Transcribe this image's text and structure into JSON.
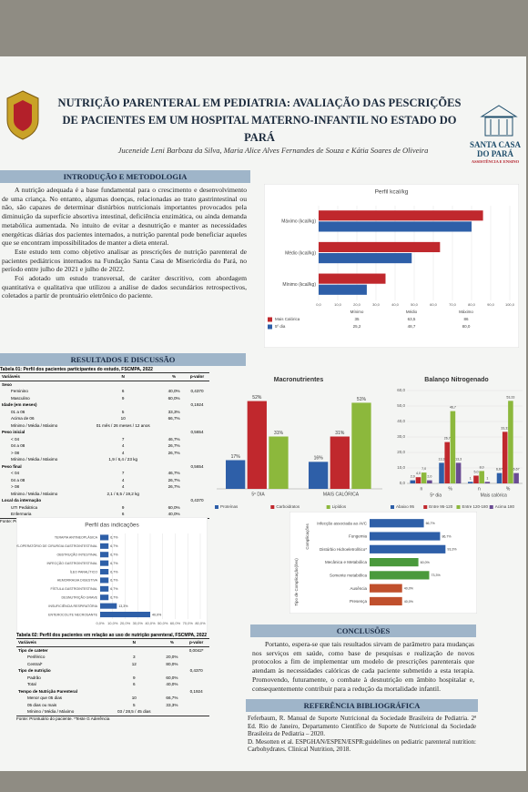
{
  "header": {
    "title": "NUTRIÇÃO PARENTERAL EM PEDIATRIA: AVALIAÇÃO DAS PESCRIÇÕES DE PACIENTES EM UM HOSPITAL MATERNO-INFANTIL NO ESTADO DO PARÁ",
    "authors": "Juceneide Leni Barboza da Silva, Maria Alice Alves Fernandes de Souza e Kátia Soares de Oliveira",
    "logo_name": "SANTA CASA DO PARÁ",
    "logo_tagline": "ASSISTÊNCIA E ENSINO"
  },
  "intro": {
    "heading": "INTRODUÇÃO E METODOLOGIA",
    "paragraphs": [
      "A nutrição adequada é a base fundamental para o crescimento e desenvolvimento de uma criança. No entanto, algumas doenças, relacionadas ao trato gastrintestinal ou não, são capazes de determinar distúrbios nutricionais importantes provocados pela diminuição da superfície absortiva intestinal, deficiência enzimática, ou ainda demanda metabólica aumentada. No intuito de evitar a desnutrição e manter as necessidades energéticas diárias dos pacientes internados, a nutrição parental pode beneficiar aqueles que se encontram impossibilitados de manter a dieta enteral.",
      "Este estudo tem como objetivo analisar as prescrições de nutrição parenteral de pacientes pediátricos internados na Fundação Santa Casa de Misericórdia do Pará, no período entre julho de 2021 e julho de 2022.",
      "Foi adotado um estudo transversal, de caráter descritivo, com abordagem quantitativa e qualitativa que utilizou a análise de dados secundários retrospectivos, coletados a partir de prontuário eletrônico do paciente."
    ]
  },
  "results": {
    "heading": "RESULTADOS E DISCUSSÃO"
  },
  "table1": {
    "caption": "Tabela 01: Perfil dos pacientes participantes do estudo, FSCMPA, 2022",
    "columns": [
      "Variáveis",
      "N",
      "%",
      "p-valor"
    ],
    "rows": [
      [
        "Sexo",
        "",
        "",
        ""
      ],
      [
        "Feminino",
        "6",
        "40,0%",
        "0,4370"
      ],
      [
        "Masculino",
        "9",
        "60,0%",
        ""
      ],
      [
        "Idade (em meses)",
        "",
        "",
        "0,1924"
      ],
      [
        "01 a 06",
        "5",
        "33,3%",
        ""
      ],
      [
        "Acima de 06",
        "10",
        "66,7%",
        ""
      ],
      [
        "Mínimo / Média / Máximo",
        "01 mês / 26 meses / 12 anos",
        "",
        ""
      ],
      [
        "Peso inicial",
        "",
        "",
        "0,5654"
      ],
      [
        "< 04",
        "7",
        "46,7%",
        ""
      ],
      [
        "04 a 08",
        "4",
        "26,7%",
        ""
      ],
      [
        "> 08",
        "4",
        "26,7%",
        ""
      ],
      [
        "Mínimo / Média / Máximo",
        "1,9 / 6,4 / 23 kg",
        "",
        ""
      ],
      [
        "Peso final",
        "",
        "",
        "0,5654"
      ],
      [
        "< 04",
        "7",
        "46,7%",
        ""
      ],
      [
        "04 a 08",
        "4",
        "26,7%",
        ""
      ],
      [
        "> 08",
        "4",
        "26,7%",
        ""
      ],
      [
        "Mínimo / Média / Máximo",
        "2,1 / 6,5 / 19,2 kg",
        "",
        ""
      ],
      [
        "Local da internação",
        "",
        "",
        "0,4370"
      ],
      [
        "UTI Pediátrica",
        "9",
        "60,0%",
        ""
      ],
      [
        "Enfermaria",
        "6",
        "40,0%",
        ""
      ]
    ],
    "source": "Fonte: Prontuário do paciente. *Teste G Aderência"
  },
  "table2": {
    "caption": "Tabela 02: Perfil dos pacientes em relação ao uso de nutrição parenteral, FSCMPA, 2022",
    "columns": [
      "Variáveis",
      "N",
      "%",
      "p-valor"
    ],
    "rows": [
      [
        "Tipo de cateter",
        "",
        "",
        "0,0042*"
      ],
      [
        "Periférico",
        "3",
        "20,0%",
        ""
      ],
      [
        "Central*",
        "12",
        "80,0%",
        ""
      ],
      [
        "Tipo de nutrição",
        "",
        "",
        "0,4370"
      ],
      [
        "Padrão",
        "9",
        "60,0%",
        ""
      ],
      [
        "Total",
        "6",
        "40,0%",
        ""
      ],
      [
        "Tempo de Nutrição Parenteral",
        "",
        "",
        "0,1924"
      ],
      [
        "Menor que 05 dias",
        "10",
        "66,7%",
        ""
      ],
      [
        "05 dias ou mais",
        "5",
        "33,3%",
        ""
      ],
      [
        "Mínimo / Média / Máximo",
        "03 / 28,5 / 45 dias",
        "",
        ""
      ]
    ],
    "source": "Fonte: Prontuário do paciente. *Teste G Aderência"
  },
  "conclusion": {
    "heading": "CONCLUSÕES",
    "text": "Portanto, espera-se que tais resultados sirvam de parâmetro para mudanças nos serviços em saúde, como base de pesquisas e realização de novos protocolos a fim de implementar um modelo de prescrições parenterais que atendam às necessidades calóricas de cada paciente submetido a esta terapia. Promovendo, futuramente, o combate à desnutrição em âmbito hospitalar e, consequentemente contribuir para a redução da mortalidade infantil."
  },
  "references": {
    "heading": "REFERÊNCIA BIBLIOGRÁFICA",
    "items": [
      "Feferbaum, R. Manual de Suporte Nutricional da Sociedade Brasileira de Pediatria. 2ª Ed. Rio de Janeiro, Departamento Científico de Suporte de Nutricional da Sociedade Brasileira de Pediatria – 2020.",
      "D. Mesotten et al. ESPGHAN/ESPEN/ESPR:guidelines on pediatric parenteral nutrition: Carbohydrates. Clinical Nutrition, 2018."
    ]
  },
  "chart_data": [
    {
      "type": "bar",
      "orientation": "horizontal",
      "title": "Perfil kcal/kg",
      "categories": [
        "Mínimo (kcal/kg)",
        "Médio (kcal/kg)",
        "Máximo (kcal/kg)"
      ],
      "table_categories": [
        "Mínimo",
        "Médio",
        "Máximo"
      ],
      "series": [
        {
          "name": "Mais Calórica",
          "color": "#c0282d",
          "values": [
            35,
            63.5,
            86
          ],
          "value_labels": [
            "35",
            "63,5",
            "86"
          ]
        },
        {
          "name": "5º dia",
          "color": "#2e5fa8",
          "values": [
            25.2,
            48.7,
            80
          ],
          "value_labels": [
            "25,2",
            "48,7",
            "80,0"
          ]
        }
      ],
      "xlim": [
        0,
        100
      ],
      "xticks": [
        {
          "value": 0,
          "label": "0,0"
        },
        {
          "value": 10,
          "label": "10,0"
        },
        {
          "value": 20,
          "label": "20,0"
        },
        {
          "value": 30,
          "label": "30,0"
        },
        {
          "value": 40,
          "label": "40,0"
        },
        {
          "value": 50,
          "label": "50,0"
        },
        {
          "value": 60,
          "label": "60,0"
        },
        {
          "value": 70,
          "label": "70,0"
        },
        {
          "value": 80,
          "label": "80,0"
        },
        {
          "value": 90,
          "label": "90,0"
        },
        {
          "value": 100,
          "label": "100,0"
        }
      ],
      "data_table": true
    },
    {
      "type": "bar",
      "orientation": "vertical",
      "title": "Macronutrientes",
      "categories": [
        "5º DIA",
        "MAIS CALÓRICA"
      ],
      "series": [
        {
          "name": "Proteínas",
          "color": "#2e5fa8",
          "values": [
            17,
            16
          ],
          "value_labels": [
            "17%",
            "16%"
          ]
        },
        {
          "name": "Carboidratos",
          "color": "#c0282d",
          "values": [
            52,
            31
          ],
          "value_labels": [
            "52%",
            "31%"
          ]
        },
        {
          "name": "Lipídios",
          "color": "#8cb83c",
          "values": [
            31,
            51
          ],
          "value_labels": [
            "31%",
            "51%"
          ]
        }
      ]
    },
    {
      "type": "bar",
      "orientation": "vertical",
      "title": "Balanço Nitrogenado",
      "categories": [
        "n",
        "%",
        "n",
        "%"
      ],
      "groups": [
        "5º dia",
        "Mais calórica"
      ],
      "series": [
        {
          "name": "Abaixo 95",
          "color": "#2e5fa8",
          "values": [
            2,
            13.3,
            1,
            6.67
          ],
          "value_labels": [
            "2,0",
            "13,3",
            "1",
            "6,67"
          ]
        },
        {
          "name": "Entre 95-120",
          "color": "#c0282d",
          "values": [
            4,
            26.7,
            5,
            33.33
          ],
          "value_labels": [
            "4,0",
            "26,7",
            "5,0",
            "33,33"
          ]
        },
        {
          "name": "Entre 120-180",
          "color": "#8cb83c",
          "values": [
            7,
            46.7,
            8,
            53.33
          ],
          "value_labels": [
            "7,0",
            "46,7",
            "8,0",
            "53,33"
          ]
        },
        {
          "name": "Acima 180",
          "color": "#6a4c93",
          "values": [
            2,
            13.3,
            1,
            6.67
          ],
          "value_labels": [
            "2,0",
            "13,3",
            "1",
            "6,67"
          ]
        }
      ],
      "ylim": [
        0,
        60
      ],
      "yticks": [
        {
          "value": 0,
          "label": "0,0"
        },
        {
          "value": 10,
          "label": "10,0"
        },
        {
          "value": 20,
          "label": "20,0"
        },
        {
          "value": 30,
          "label": "30,0"
        },
        {
          "value": 40,
          "label": "40,0"
        },
        {
          "value": 50,
          "label": "50,0"
        },
        {
          "value": 60,
          "label": "60,0"
        }
      ]
    },
    {
      "type": "bar",
      "orientation": "horizontal",
      "title": "Perfil das indicações",
      "categories": [
        "ENTEROCOLITE NECROSANTE",
        "INSUFICIÊNCIA RESPIRATÓRIA",
        "DESNUTRIÇÃO GRAVE",
        "FÍSTULA GASTROINTESTINAL",
        "HEMORRAGIA DIGESTIVA",
        "ÍLEO PARALÍTICO",
        "INFECÇÃO GASTROINTESTINAL",
        "OBSTRUÇÃO INTESTINAL",
        "PÓS-OPERATÓRIO DE CIRURGIA GASTROINTESTINAL",
        "TERAPIA ANTINEOPLÁSICA"
      ],
      "series": [
        {
          "name": "Indicações",
          "color": "#2e5fa8",
          "values": [
            40,
            13.3,
            6.7,
            6.7,
            6.7,
            6.7,
            6.7,
            6.7,
            6.7,
            6.7
          ],
          "value_labels": [
            "40,0%",
            "13,3%",
            "6,7%",
            "6,7%",
            "6,7%",
            "6,7%",
            "6,7%",
            "6,7%",
            "6,7%",
            "6,7%"
          ]
        }
      ],
      "xlim": [
        0,
        80
      ],
      "xticks": [
        {
          "value": 0,
          "label": "0,0%"
        },
        {
          "value": 10,
          "label": "10,0%"
        },
        {
          "value": 20,
          "label": "20,0%"
        },
        {
          "value": 30,
          "label": "30,0%"
        },
        {
          "value": 40,
          "label": "40,0%"
        },
        {
          "value": 50,
          "label": "50,0%"
        },
        {
          "value": 60,
          "label": "60,0%"
        },
        {
          "value": 70,
          "label": "70,0%"
        },
        {
          "value": 80,
          "label": "80,0%"
        }
      ]
    },
    {
      "type": "bar",
      "orientation": "horizontal",
      "axis_groups": [
        "Tipo de Complicação(ões)",
        "Complicações"
      ],
      "categories": [
        "Presença",
        "Ausência",
        "Somente metabólica",
        "Mecânica e Metabólica",
        "Distúrbio Hidroeletrolítico*",
        "Fungemia",
        "Infecção associada ao AVC"
      ],
      "series": [
        {
          "name": "Complicações",
          "colors": [
            "#c0502d",
            "#c0502d",
            "#4a9a3c",
            "#4a9a3c",
            "#2e5fa8",
            "#2e5fa8",
            "#2e5fa8"
          ],
          "values": [
            40,
            40,
            73.3,
            60,
            93.3,
            86.7,
            66.7
          ],
          "value_labels": [
            "40,0%",
            "40,0%",
            "73,3%",
            "60,0%",
            "93,3%",
            "86,7%",
            "66,7%"
          ]
        }
      ]
    }
  ]
}
